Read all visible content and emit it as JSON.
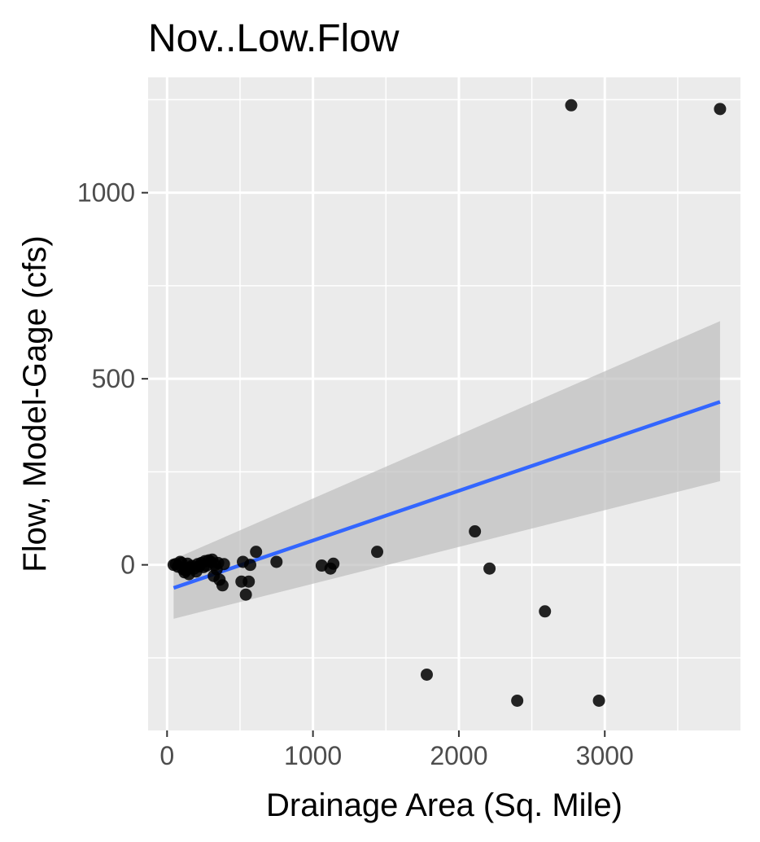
{
  "chart_data": {
    "type": "scatter",
    "title": "Nov..Low.Flow",
    "xlabel": "Drainage Area (Sq. Mile)",
    "ylabel": "Flow, Model-Gage (cfs)",
    "xlim": [
      -130,
      3930
    ],
    "ylim": [
      -445,
      1310
    ],
    "x_ticks": [
      0,
      1000,
      2000,
      3000
    ],
    "x_tick_labels": [
      "0",
      "1000",
      "2000",
      "3000"
    ],
    "x_minor": [
      500,
      1500,
      2500,
      3500
    ],
    "y_ticks": [
      0,
      500,
      1000
    ],
    "y_tick_labels": [
      "0",
      "500",
      "1000"
    ],
    "y_minor": [
      -250,
      250,
      750,
      1250
    ],
    "grid": true,
    "legend": "none",
    "colors": {
      "panel": "#ebebeb",
      "grid": "#ffffff",
      "points": "#000000",
      "trend": "#3366ff",
      "band": "#bebebe"
    },
    "points": [
      [
        45,
        0
      ],
      [
        60,
        2
      ],
      [
        75,
        -5
      ],
      [
        90,
        8
      ],
      [
        100,
        5
      ],
      [
        110,
        -12
      ],
      [
        120,
        -20
      ],
      [
        130,
        -15
      ],
      [
        140,
        3
      ],
      [
        150,
        -25
      ],
      [
        160,
        -8
      ],
      [
        170,
        -3
      ],
      [
        185,
        -10
      ],
      [
        200,
        -18
      ],
      [
        210,
        2
      ],
      [
        220,
        -4
      ],
      [
        235,
        5
      ],
      [
        250,
        -6
      ],
      [
        260,
        10
      ],
      [
        270,
        -2
      ],
      [
        285,
        12
      ],
      [
        300,
        8
      ],
      [
        310,
        14
      ],
      [
        320,
        -30
      ],
      [
        330,
        0
      ],
      [
        340,
        -12
      ],
      [
        350,
        5
      ],
      [
        360,
        -40
      ],
      [
        380,
        -55
      ],
      [
        390,
        2
      ],
      [
        510,
        -45
      ],
      [
        520,
        8
      ],
      [
        540,
        -80
      ],
      [
        560,
        -45
      ],
      [
        570,
        0
      ],
      [
        610,
        35
      ],
      [
        750,
        8
      ],
      [
        1060,
        -2
      ],
      [
        1120,
        -10
      ],
      [
        1140,
        3
      ],
      [
        1440,
        35
      ],
      [
        1780,
        -295
      ],
      [
        2110,
        90
      ],
      [
        2210,
        -10
      ],
      [
        2400,
        -365
      ],
      [
        2590,
        -125
      ],
      [
        2770,
        1235
      ],
      [
        2960,
        -365
      ],
      [
        3790,
        1225
      ]
    ],
    "trend": {
      "x": [
        45,
        3790
      ],
      "y": [
        -62,
        438
      ],
      "ci_lower": [
        -145,
        225
      ],
      "ci_upper": [
        15,
        655
      ]
    }
  }
}
